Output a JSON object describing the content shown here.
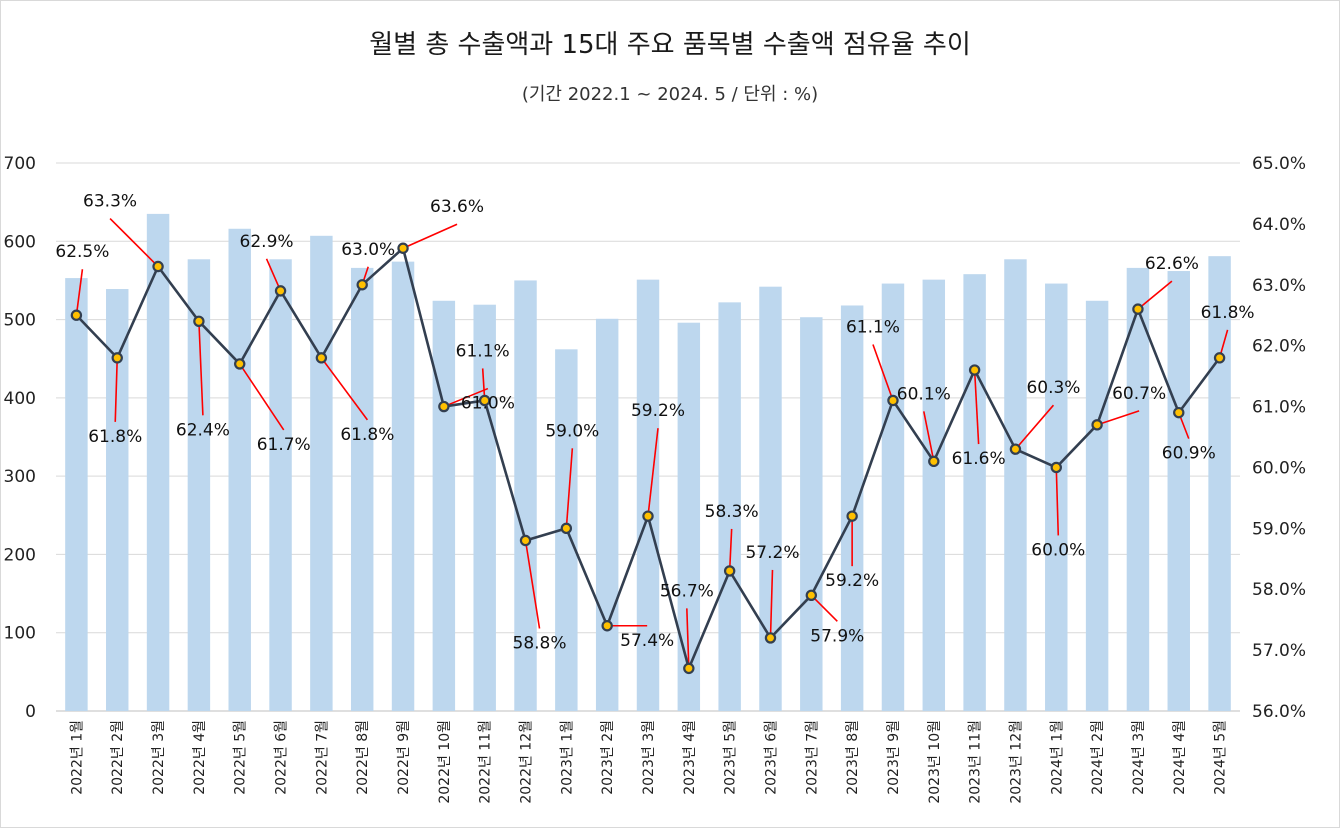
{
  "chart_data": {
    "type": "bar",
    "title": "월별 총 수출액과 15대 주요 품목별 수출액 점유율 추이",
    "subtitle": "(기간 2022.1 ~ 2024. 5 / 단위 : %)",
    "categories": [
      "2022년 1월",
      "2022년 2월",
      "2022년 3월",
      "2022년 4월",
      "2022년 5월",
      "2022년 6월",
      "2022년 7월",
      "2022년 8월",
      "2022년 9월",
      "2022년 10월",
      "2022년 11월",
      "2022년 12월",
      "2023년 1월",
      "2023년 2월",
      "2023년 3월",
      "2023년 4월",
      "2023년 5월",
      "2023년 6월",
      "2023년 7월",
      "2023년 8월",
      "2023년 9월",
      "2023년 10월",
      "2023년 11월",
      "2023년 12월",
      "2024년 1월",
      "2024년 2월",
      "2024년 3월",
      "2024년 4월",
      "2024년 5월"
    ],
    "series": [
      {
        "type": "bar",
        "axis": "left",
        "color": "#bdd7ee",
        "values": [
          553,
          539,
          635,
          577,
          616,
          577,
          607,
          566,
          574,
          524,
          519,
          550,
          462,
          501,
          551,
          496,
          522,
          542,
          503,
          518,
          546,
          551,
          558,
          577,
          546,
          524,
          566,
          562,
          581
        ]
      },
      {
        "type": "line",
        "axis": "right",
        "color": "#333f50",
        "marker_fill": "#ffc000",
        "values": [
          62.5,
          61.8,
          63.3,
          62.4,
          61.7,
          62.9,
          61.8,
          63.0,
          63.6,
          61.0,
          61.1,
          58.8,
          59.0,
          57.4,
          59.2,
          56.7,
          58.3,
          57.2,
          57.9,
          59.2,
          61.1,
          60.1,
          61.6,
          60.3,
          60.0,
          60.7,
          62.6,
          60.9,
          61.8
        ],
        "data_labels": [
          "62.5%",
          "61.8%",
          "63.3%",
          "62.4%",
          "61.7%",
          "62.9%",
          "61.8%",
          "63.0%",
          "63.6%",
          "61.0%",
          "61.1%",
          "58.8%",
          "59.0%",
          "57.4%",
          "59.2%",
          "56.7%",
          "58.3%",
          "57.2%",
          "57.9%",
          "59.2%",
          "61.1%",
          "60.1%",
          "61.6%",
          "60.3%",
          "60.0%",
          "60.7%",
          "62.6%",
          "60.9%",
          "61.8%"
        ]
      }
    ],
    "y_left": {
      "min": 0,
      "max": 700,
      "ticks": [
        "0",
        "100",
        "200",
        "300",
        "400",
        "500",
        "600",
        "700"
      ]
    },
    "y_right": {
      "min": 56,
      "max": 65,
      "ticks": [
        "56.0%",
        "57.0%",
        "58.0%",
        "59.0%",
        "60.0%",
        "61.0%",
        "62.0%",
        "63.0%",
        "64.0%",
        "65.0%"
      ]
    },
    "grid": true,
    "legend": "none",
    "leader_line_color": "#ff0000"
  }
}
